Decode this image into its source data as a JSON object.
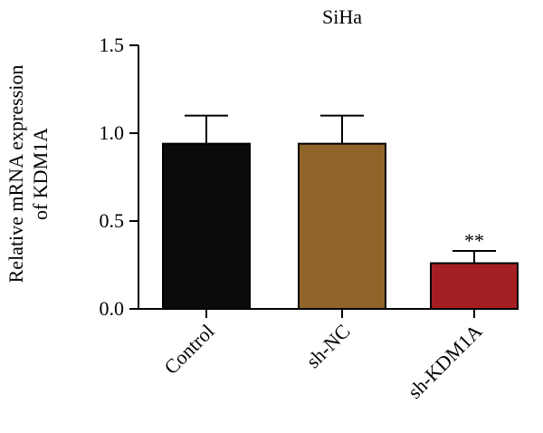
{
  "chart_data": {
    "type": "bar",
    "title": "SiHa",
    "ylabel_lines": [
      "Relative mRNA expression",
      "of KDM1A"
    ],
    "xlabel": "",
    "categories": [
      "Control",
      "sh-NC",
      "sh-KDM1A"
    ],
    "values": [
      0.94,
      0.94,
      0.26
    ],
    "errors": [
      0.16,
      0.16,
      0.07
    ],
    "bar_colors": [
      "#0b0b0b",
      "#8f6428",
      "#a31f22"
    ],
    "annotations": [
      "",
      "",
      "**"
    ],
    "ylim": [
      0,
      1.5
    ],
    "yticks": [
      0.0,
      0.5,
      1.0,
      1.5
    ],
    "ytick_labels": [
      "0.0",
      "0.5",
      "1.0",
      "1.5"
    ],
    "grid": false,
    "legend": "none"
  }
}
